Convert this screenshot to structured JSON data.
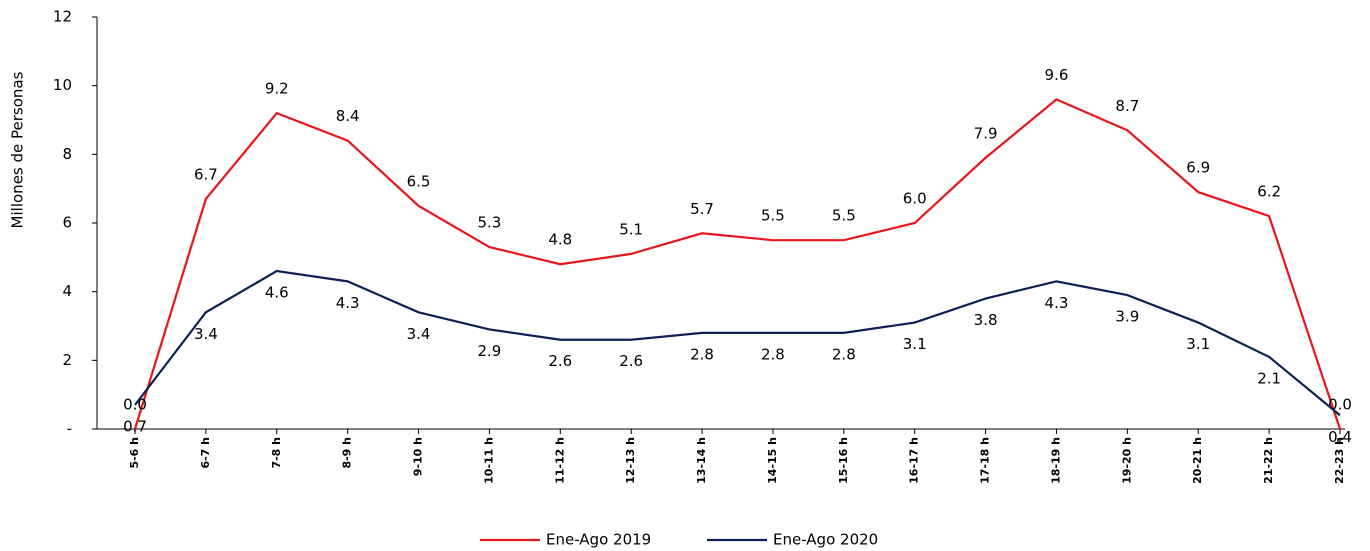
{
  "chart_data": {
    "type": "line",
    "ylabel": "Millones de Personas",
    "categories": [
      "5-6 h",
      "6-7 h",
      "7-8 h",
      "8-9 h",
      "9-10 h",
      "10-11 h",
      "11-12 h",
      "12-13 h",
      "13-14 h",
      "14-15 h",
      "15-16 h",
      "16-17 h",
      "17-18 h",
      "18-19 h",
      "19-20 h",
      "20-21 h",
      "21-22 h",
      "22-23 h"
    ],
    "series": [
      {
        "name": "Ene-Ago 2019",
        "color": "#e8161b",
        "values": [
          0.0,
          6.7,
          9.2,
          8.4,
          6.5,
          5.3,
          4.8,
          5.1,
          5.7,
          5.5,
          5.5,
          6.0,
          7.9,
          9.6,
          8.7,
          6.9,
          6.2,
          0.0
        ],
        "value_labels": [
          "0.0",
          "6.7",
          "9.2",
          "8.4",
          "6.5",
          "5.3",
          "4.8",
          "5.1",
          "5.7",
          "5.5",
          "5.5",
          "6.0",
          "7.9",
          "9.6",
          "8.7",
          "6.9",
          "6.2",
          "0.0"
        ]
      },
      {
        "name": "Ene-Ago 2020",
        "color": "#0d2157",
        "values": [
          0.7,
          3.4,
          4.6,
          4.3,
          3.4,
          2.9,
          2.6,
          2.6,
          2.8,
          2.8,
          2.8,
          3.1,
          3.8,
          4.3,
          3.9,
          3.1,
          2.1,
          0.4
        ],
        "value_labels": [
          "0.7",
          "3.4",
          "4.6",
          "4.3",
          "3.4",
          "2.9",
          "2.6",
          "2.6",
          "2.8",
          "2.8",
          "2.8",
          "3.1",
          "3.8",
          "4.3",
          "3.9",
          "3.1",
          "2.1",
          "0.4"
        ]
      }
    ],
    "ylim": [
      0,
      12
    ],
    "yticks": [
      {
        "value": 0,
        "label": "-"
      },
      2,
      4,
      6,
      8,
      10,
      12
    ],
    "legend": "bottom"
  }
}
